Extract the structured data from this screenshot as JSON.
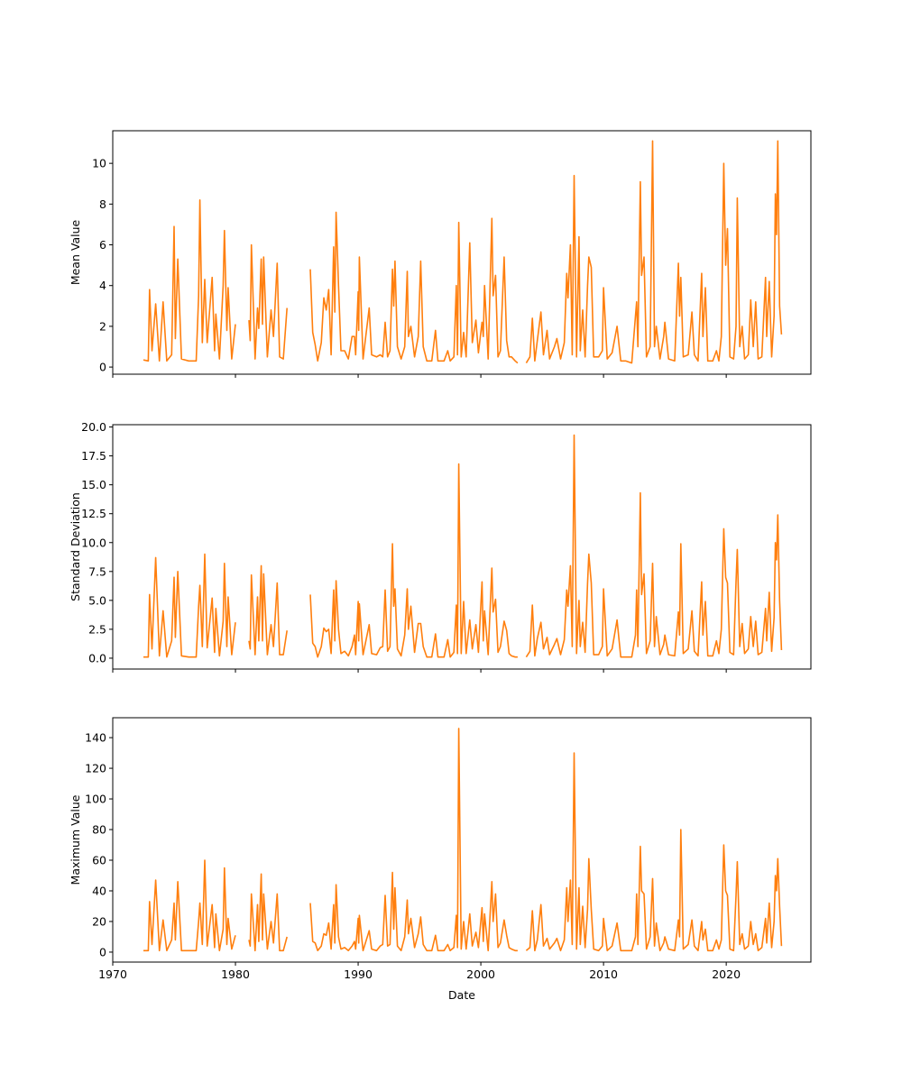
{
  "chart_data": {
    "type": "line",
    "xlabel": "Date",
    "x_ticks": [
      1970,
      1980,
      1990,
      2000,
      2010,
      2020
    ],
    "xlim": [
      1970,
      2026.9
    ],
    "line_color": "#ff7f0e",
    "grid": false,
    "panels": [
      {
        "key": "mean",
        "ylabel": "Mean Value",
        "ylim": [
          -0.35,
          11.6
        ],
        "y_ticks": [
          0,
          2,
          4,
          6,
          8,
          10
        ],
        "y_tick_labels": [
          "0",
          "2",
          "4",
          "6",
          "8",
          "10"
        ]
      },
      {
        "key": "std",
        "ylabel": "Standard Deviation",
        "ylim": [
          -0.94,
          20.2
        ],
        "y_ticks": [
          0,
          2.5,
          5,
          7.5,
          10,
          12.5,
          15,
          17.5,
          20
        ],
        "y_tick_labels": [
          "0.0",
          "2.5",
          "5.0",
          "7.5",
          "10.0",
          "12.5",
          "15.0",
          "17.5",
          "20.0"
        ]
      },
      {
        "key": "max",
        "ylabel": "Maximum Value",
        "ylim": [
          -6.5,
          153
        ],
        "y_ticks": [
          0,
          20,
          40,
          60,
          80,
          100,
          120,
          140
        ],
        "y_tick_labels": [
          "0",
          "20",
          "40",
          "60",
          "80",
          "100",
          "120",
          "140"
        ]
      }
    ],
    "columns": [
      "year",
      "mean",
      "std",
      "max"
    ],
    "rows": [
      [
        1972.5,
        0.35,
        0.1,
        1
      ],
      [
        1972.9,
        0.3,
        0.1,
        1
      ],
      [
        1973.0,
        3.8,
        5.5,
        33
      ],
      [
        1973.2,
        0.8,
        0.8,
        5
      ],
      [
        1973.5,
        3.1,
        8.7,
        47
      ],
      [
        1973.8,
        0.3,
        0.2,
        1
      ],
      [
        1974.1,
        3.2,
        4.1,
        21
      ],
      [
        1974.4,
        0.3,
        0.1,
        1
      ],
      [
        1974.8,
        0.6,
        1.5,
        8
      ],
      [
        1975.0,
        6.9,
        7.0,
        32
      ],
      [
        1975.1,
        1.4,
        1.8,
        8
      ],
      [
        1975.3,
        5.3,
        7.5,
        46
      ],
      [
        1975.6,
        0.4,
        0.2,
        1
      ],
      [
        1976.2,
        0.3,
        0.1,
        1
      ],
      [
        1976.8,
        0.3,
        0.1,
        1
      ],
      [
        1977.0,
        3.5,
        4.5,
        20
      ],
      [
        1977.1,
        8.2,
        6.3,
        32
      ],
      [
        1977.3,
        1.2,
        1.0,
        5
      ],
      [
        1977.5,
        4.3,
        9.0,
        60
      ],
      [
        1977.7,
        1.2,
        0.9,
        4
      ],
      [
        1978.1,
        4.4,
        5.2,
        31
      ],
      [
        1978.3,
        0.8,
        0.5,
        3
      ],
      [
        1978.4,
        2.6,
        4.3,
        25
      ],
      [
        1978.7,
        0.4,
        0.2,
        1
      ],
      [
        1979.0,
        4.0,
        3.2,
        15
      ],
      [
        1979.1,
        6.7,
        8.2,
        55
      ],
      [
        1979.3,
        1.8,
        1.0,
        5
      ],
      [
        1979.4,
        3.9,
        5.3,
        22
      ],
      [
        1979.7,
        0.4,
        0.3,
        2
      ],
      [
        1980.0,
        2.1,
        3.1,
        11
      ],
      [
        null,
        null,
        null,
        null
      ],
      [
        1981.1,
        2.3,
        1.5,
        8
      ],
      [
        1981.2,
        1.3,
        0.8,
        4
      ],
      [
        1981.3,
        6.0,
        7.2,
        38
      ],
      [
        1981.6,
        0.4,
        0.3,
        1
      ],
      [
        1981.8,
        2.9,
        5.3,
        31
      ],
      [
        1981.9,
        1.9,
        1.5,
        7
      ],
      [
        1982.1,
        5.3,
        8.0,
        51
      ],
      [
        1982.2,
        2.1,
        1.5,
        8
      ],
      [
        1982.3,
        5.4,
        7.3,
        38
      ],
      [
        1982.6,
        0.5,
        0.3,
        2
      ],
      [
        1982.9,
        2.8,
        2.9,
        20
      ],
      [
        1983.1,
        1.5,
        1.0,
        6
      ],
      [
        1983.4,
        5.1,
        6.5,
        38
      ],
      [
        1983.6,
        0.5,
        0.3,
        1
      ],
      [
        1983.9,
        0.4,
        0.3,
        1
      ],
      [
        1984.2,
        2.9,
        2.4,
        10
      ],
      [
        null,
        null,
        null,
        null
      ],
      [
        1986.1,
        4.8,
        5.5,
        32
      ],
      [
        1986.3,
        1.7,
        1.3,
        7
      ],
      [
        1986.5,
        1.1,
        1.0,
        6
      ],
      [
        1986.7,
        0.3,
        0.1,
        1
      ],
      [
        1987.0,
        1.2,
        1.0,
        4
      ],
      [
        1987.2,
        3.4,
        2.6,
        12
      ],
      [
        1987.4,
        2.8,
        2.3,
        11
      ],
      [
        1987.6,
        3.8,
        2.5,
        19
      ],
      [
        1987.8,
        0.6,
        0.4,
        2
      ],
      [
        1988.0,
        5.9,
        5.9,
        31
      ],
      [
        1988.1,
        2.7,
        1.5,
        6
      ],
      [
        1988.2,
        7.6,
        6.7,
        44
      ],
      [
        1988.4,
        4.0,
        2.5,
        10
      ],
      [
        1988.6,
        0.8,
        0.4,
        2
      ],
      [
        1988.9,
        0.8,
        0.6,
        3
      ],
      [
        1989.2,
        0.4,
        0.2,
        1
      ],
      [
        1989.5,
        1.5,
        1.0,
        4
      ],
      [
        1989.7,
        1.5,
        2.0,
        7
      ],
      [
        1989.8,
        0.6,
        0.3,
        2
      ],
      [
        1990.0,
        3.7,
        4.9,
        22
      ],
      [
        1990.05,
        1.8,
        1.5,
        6
      ],
      [
        1990.1,
        5.4,
        4.7,
        24
      ],
      [
        1990.4,
        0.4,
        0.3,
        1
      ],
      [
        1990.9,
        2.9,
        2.9,
        14
      ],
      [
        1991.1,
        0.6,
        0.4,
        2
      ],
      [
        1991.5,
        0.5,
        0.3,
        1
      ],
      [
        1991.8,
        0.6,
        0.9,
        4
      ],
      [
        1992.0,
        0.5,
        1.0,
        5
      ],
      [
        1992.2,
        2.2,
        5.9,
        37
      ],
      [
        1992.4,
        0.5,
        0.6,
        4
      ],
      [
        1992.6,
        0.8,
        1.0,
        5
      ],
      [
        1992.8,
        4.8,
        9.9,
        52
      ],
      [
        1992.9,
        3.0,
        4.5,
        15
      ],
      [
        1993.0,
        5.2,
        6.0,
        42
      ],
      [
        1993.2,
        1.0,
        0.8,
        4
      ],
      [
        1993.5,
        0.4,
        0.2,
        1
      ],
      [
        1993.8,
        1.0,
        2.0,
        10
      ],
      [
        1994.0,
        4.7,
        6.0,
        34
      ],
      [
        1994.1,
        1.5,
        2.5,
        12
      ],
      [
        1994.3,
        2.0,
        4.5,
        22
      ],
      [
        1994.6,
        0.5,
        0.5,
        3
      ],
      [
        1994.9,
        1.5,
        3.0,
        12
      ],
      [
        1995.1,
        5.2,
        3.0,
        23
      ],
      [
        1995.3,
        1.0,
        1.0,
        5
      ],
      [
        1995.6,
        0.3,
        0.1,
        1
      ],
      [
        1996.0,
        0.3,
        0.1,
        1
      ],
      [
        1996.3,
        1.8,
        2.1,
        11
      ],
      [
        1996.5,
        0.3,
        0.1,
        1
      ],
      [
        1997.0,
        0.3,
        0.1,
        1
      ],
      [
        1997.3,
        0.8,
        1.6,
        5
      ],
      [
        1997.5,
        0.3,
        0.1,
        1
      ],
      [
        1997.8,
        0.5,
        0.5,
        3
      ],
      [
        1998.0,
        4.0,
        4.6,
        24
      ],
      [
        1998.1,
        0.6,
        0.4,
        3
      ],
      [
        1998.2,
        7.1,
        16.8,
        146
      ],
      [
        1998.4,
        0.5,
        0.4,
        2
      ],
      [
        1998.6,
        1.7,
        4.9,
        20
      ],
      [
        1998.8,
        0.5,
        0.4,
        2
      ],
      [
        1999.1,
        6.1,
        3.3,
        25
      ],
      [
        1999.3,
        1.2,
        0.8,
        4
      ],
      [
        1999.6,
        2.3,
        2.9,
        13
      ],
      [
        1999.8,
        0.7,
        0.5,
        3
      ],
      [
        2000.1,
        2.2,
        6.6,
        29
      ],
      [
        2000.2,
        1.5,
        1.5,
        7
      ],
      [
        2000.3,
        4.0,
        4.1,
        25
      ],
      [
        2000.6,
        0.4,
        0.3,
        1
      ],
      [
        2000.9,
        7.3,
        7.8,
        46
      ],
      [
        2001.0,
        3.5,
        4.0,
        20
      ],
      [
        2001.2,
        4.5,
        5.1,
        38
      ],
      [
        2001.4,
        0.5,
        0.5,
        3
      ],
      [
        2001.6,
        0.8,
        1.0,
        6
      ],
      [
        2001.9,
        5.4,
        3.2,
        21
      ],
      [
        2002.1,
        1.3,
        2.4,
        11
      ],
      [
        2002.3,
        0.5,
        0.4,
        3
      ],
      [
        2002.5,
        0.5,
        0.2,
        2
      ],
      [
        2002.8,
        0.3,
        0.1,
        1
      ],
      [
        2003.0,
        0.2,
        0.1,
        1
      ],
      [
        null,
        null,
        null,
        null
      ],
      [
        2003.7,
        0.2,
        0.1,
        1
      ],
      [
        2004.0,
        0.5,
        0.6,
        3
      ],
      [
        2004.2,
        2.4,
        4.6,
        27
      ],
      [
        2004.4,
        0.3,
        0.2,
        1
      ],
      [
        2004.6,
        1.3,
        1.7,
        8
      ],
      [
        2004.9,
        2.7,
        3.1,
        31
      ],
      [
        2005.1,
        0.6,
        0.8,
        4
      ],
      [
        2005.4,
        1.8,
        1.8,
        9
      ],
      [
        2005.6,
        0.4,
        0.3,
        2
      ],
      [
        2006.0,
        1.0,
        1.2,
        6
      ],
      [
        2006.2,
        1.4,
        1.7,
        9
      ],
      [
        2006.5,
        0.4,
        0.3,
        1
      ],
      [
        2006.8,
        1.2,
        1.6,
        8
      ],
      [
        2007.0,
        4.6,
        5.9,
        42
      ],
      [
        2007.1,
        3.4,
        4.5,
        20
      ],
      [
        2007.3,
        6.0,
        8.0,
        47
      ],
      [
        2007.45,
        0.6,
        1.0,
        5
      ],
      [
        2007.6,
        9.4,
        19.3,
        130
      ],
      [
        2007.8,
        0.5,
        0.4,
        2
      ],
      [
        2008.0,
        6.4,
        5.0,
        42
      ],
      [
        2008.1,
        0.8,
        1.0,
        5
      ],
      [
        2008.3,
        2.8,
        3.1,
        30
      ],
      [
        2008.5,
        0.5,
        0.5,
        3
      ],
      [
        2008.7,
        4.0,
        6.5,
        28
      ],
      [
        2008.8,
        5.4,
        9.0,
        61
      ],
      [
        2009.0,
        4.9,
        6.5,
        28
      ],
      [
        2009.2,
        0.5,
        0.3,
        2
      ],
      [
        2009.6,
        0.5,
        0.3,
        1
      ],
      [
        2009.9,
        0.8,
        1.0,
        4
      ],
      [
        2010.0,
        3.9,
        6.0,
        22
      ],
      [
        2010.3,
        0.4,
        0.2,
        1
      ],
      [
        2010.7,
        0.7,
        0.8,
        4
      ],
      [
        2011.1,
        2.0,
        3.3,
        19
      ],
      [
        2011.4,
        0.3,
        0.1,
        1
      ],
      [
        2011.8,
        0.3,
        0.1,
        1
      ],
      [
        2012.3,
        0.2,
        0.1,
        1
      ],
      [
        2012.6,
        2.5,
        2.0,
        10
      ],
      [
        2012.7,
        3.2,
        5.9,
        38
      ],
      [
        2012.8,
        1.0,
        1.0,
        5
      ],
      [
        2013.0,
        9.1,
        14.3,
        69
      ],
      [
        2013.1,
        4.5,
        5.5,
        40
      ],
      [
        2013.3,
        5.4,
        7.3,
        38
      ],
      [
        2013.5,
        0.5,
        0.4,
        2
      ],
      [
        2013.8,
        1.0,
        1.5,
        10
      ],
      [
        2014.0,
        11.1,
        8.2,
        48
      ],
      [
        2014.15,
        1.0,
        1.0,
        4
      ],
      [
        2014.3,
        2.0,
        3.6,
        19
      ],
      [
        2014.6,
        0.4,
        0.3,
        1
      ],
      [
        2014.9,
        1.5,
        1.2,
        6
      ],
      [
        2015.0,
        2.2,
        2.0,
        10
      ],
      [
        2015.3,
        0.4,
        0.3,
        2
      ],
      [
        2015.8,
        0.3,
        0.2,
        1
      ],
      [
        2016.1,
        5.1,
        4.0,
        21
      ],
      [
        2016.2,
        2.5,
        2.0,
        10
      ],
      [
        2016.3,
        4.4,
        9.9,
        80
      ],
      [
        2016.5,
        0.5,
        0.4,
        2
      ],
      [
        2016.9,
        0.6,
        0.8,
        5
      ],
      [
        2017.2,
        2.7,
        4.1,
        21
      ],
      [
        2017.4,
        0.6,
        0.6,
        4
      ],
      [
        2017.7,
        0.3,
        0.2,
        1
      ],
      [
        2018.0,
        4.6,
        6.6,
        20
      ],
      [
        2018.1,
        1.5,
        2.0,
        8
      ],
      [
        2018.3,
        3.9,
        4.9,
        15
      ],
      [
        2018.5,
        0.3,
        0.2,
        1
      ],
      [
        2018.9,
        0.3,
        0.2,
        1
      ],
      [
        2019.2,
        0.8,
        1.5,
        8
      ],
      [
        2019.4,
        0.3,
        0.4,
        2
      ],
      [
        2019.6,
        1.5,
        2.5,
        8
      ],
      [
        2019.8,
        10.0,
        11.2,
        70
      ],
      [
        2019.95,
        5.0,
        7.0,
        40
      ],
      [
        2020.1,
        6.8,
        6.5,
        37
      ],
      [
        2020.3,
        0.5,
        0.5,
        2
      ],
      [
        2020.6,
        0.4,
        0.3,
        1
      ],
      [
        2020.8,
        2.0,
        6.6,
        37
      ],
      [
        2020.9,
        8.3,
        9.4,
        59
      ],
      [
        2021.1,
        1.0,
        1.0,
        5
      ],
      [
        2021.3,
        2.0,
        3.0,
        12
      ],
      [
        2021.5,
        0.4,
        0.4,
        2
      ],
      [
        2021.8,
        0.6,
        0.8,
        4
      ],
      [
        2022.0,
        3.3,
        3.6,
        20
      ],
      [
        2022.2,
        1.0,
        1.0,
        5
      ],
      [
        2022.4,
        3.2,
        3.2,
        12
      ],
      [
        2022.6,
        0.4,
        0.3,
        1
      ],
      [
        2022.9,
        0.5,
        0.5,
        3
      ],
      [
        2023.2,
        4.4,
        4.3,
        22
      ],
      [
        2023.3,
        1.5,
        1.5,
        6
      ],
      [
        2023.5,
        4.2,
        5.7,
        32
      ],
      [
        2023.7,
        0.5,
        0.6,
        3
      ],
      [
        2023.9,
        2.5,
        3.5,
        20
      ],
      [
        2024.0,
        8.5,
        10.0,
        50
      ],
      [
        2024.1,
        6.5,
        8.5,
        40
      ],
      [
        2024.2,
        11.1,
        12.4,
        61
      ],
      [
        2024.35,
        3.0,
        5.0,
        30
      ],
      [
        2024.5,
        1.6,
        0.7,
        4
      ]
    ]
  }
}
